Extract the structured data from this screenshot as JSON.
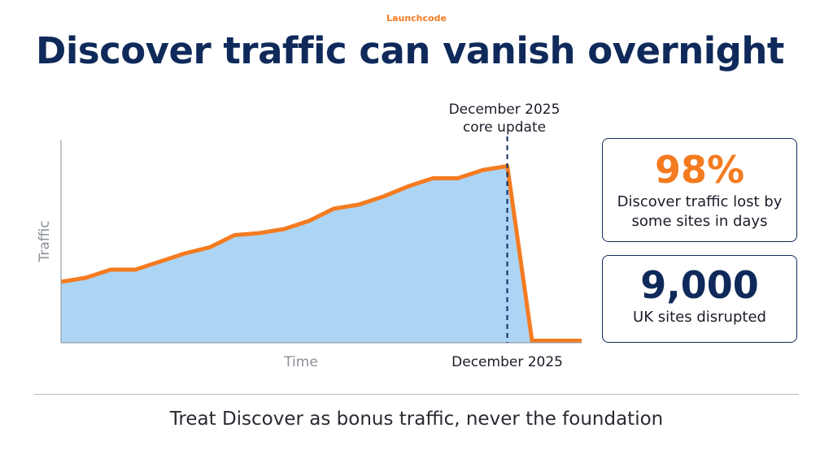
{
  "brand": "Launchcode",
  "title": "Discover traffic can vanish overnight",
  "chart_data": {
    "type": "line",
    "annotation": "December 2025 core update",
    "x_label": "Time",
    "y_label": "Traffic",
    "categories": [
      null,
      null,
      null,
      null,
      null,
      null,
      null,
      null,
      null,
      null,
      null,
      null,
      null,
      null,
      null,
      null,
      null,
      null,
      "December 2025",
      null,
      null,
      null
    ],
    "values": [
      30,
      32,
      36,
      36,
      40,
      44,
      47,
      53,
      54,
      56,
      60,
      66,
      68,
      72,
      77,
      81,
      81,
      85,
      87,
      1,
      1,
      1
    ],
    "color": "#f47b20",
    "fill": "#acd5f5",
    "ylim": [
      0,
      100
    ]
  },
  "stats": [
    {
      "value": "98%",
      "label": "Discover traffic lost by some sites in days"
    },
    {
      "value": "9,000",
      "label": "UK sites disrupted"
    }
  ],
  "footer": "Treat Discover as bonus traffic, never the foundation"
}
